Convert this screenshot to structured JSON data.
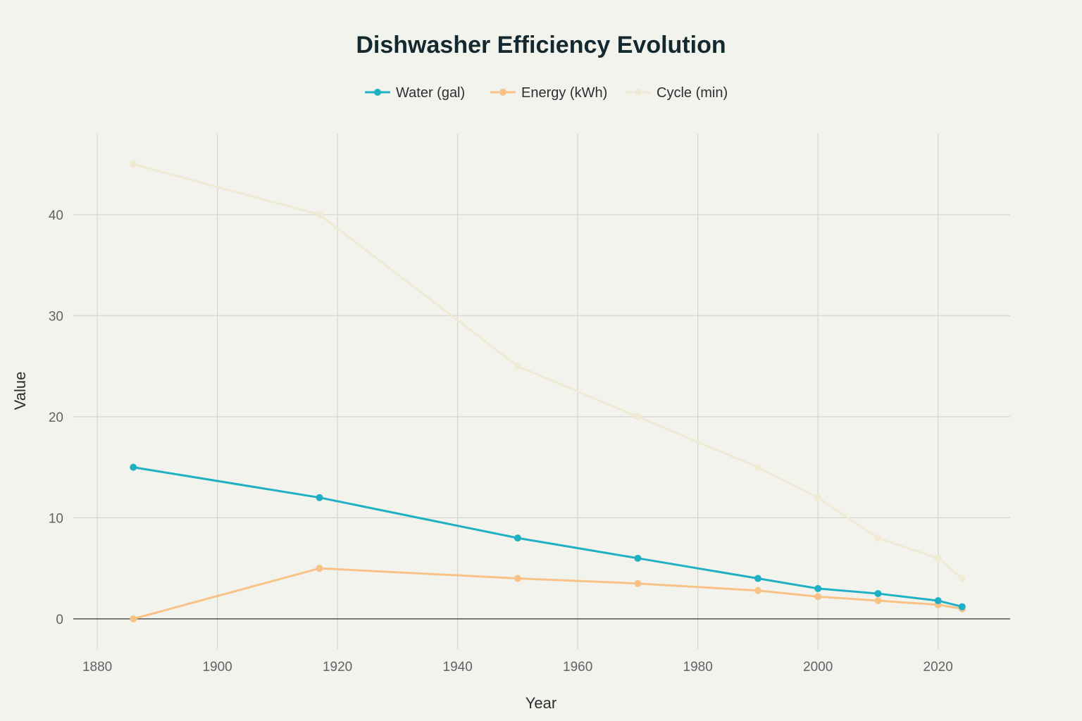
{
  "chart_data": {
    "type": "line",
    "title": "Dishwasher Efficiency Evolution",
    "xlabel": "Year",
    "ylabel": "Value",
    "xlim": [
      1876,
      2032
    ],
    "ylim": [
      -3,
      48
    ],
    "xticks": [
      1880,
      1900,
      1920,
      1940,
      1960,
      1980,
      2000,
      2020
    ],
    "yticks": [
      0,
      10,
      20,
      30,
      40
    ],
    "grid": true,
    "legend_position": "top-center",
    "x": [
      1886,
      1917,
      1950,
      1970,
      1990,
      2000,
      2010,
      2020,
      2024
    ],
    "series": [
      {
        "name": "Water (gal)",
        "color": "#1fb0c4",
        "values": [
          15,
          12,
          8,
          6,
          4,
          3,
          2.5,
          1.8,
          1.2
        ]
      },
      {
        "name": "Energy (kWh)",
        "color": "#f8c287",
        "values": [
          0,
          5,
          4,
          3.5,
          2.8,
          2.2,
          1.8,
          1.4,
          1.0
        ]
      },
      {
        "name": "Cycle (min)",
        "color": "#f0ead4",
        "values": [
          45,
          40,
          25,
          20,
          15,
          12,
          8,
          6,
          4
        ]
      }
    ]
  }
}
